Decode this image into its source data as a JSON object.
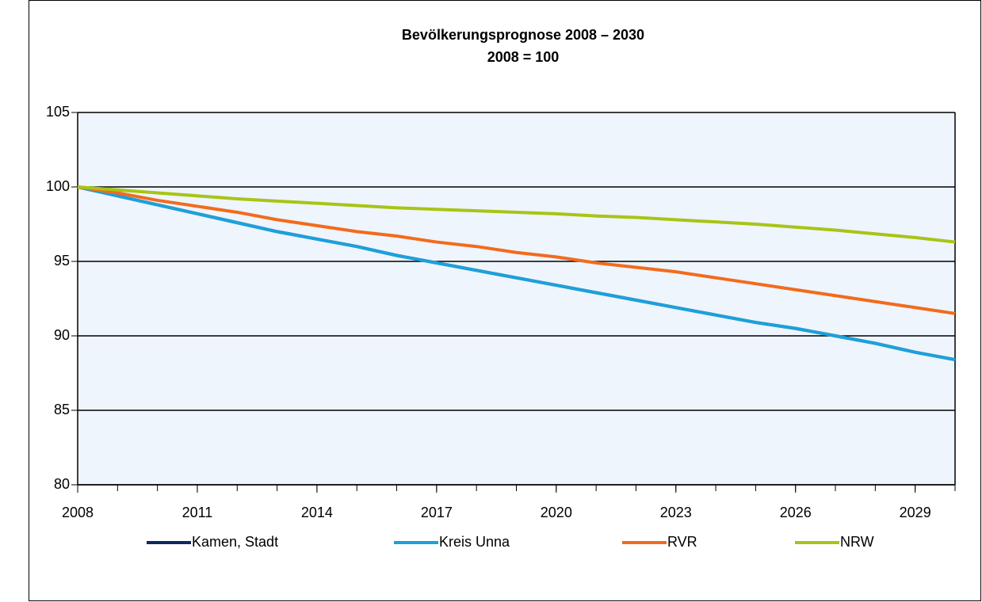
{
  "chart_data": {
    "type": "line",
    "title": "Bevölkerungsprognose 2008 – 2030",
    "subtitle": "2008 = 100",
    "x": [
      2008,
      2009,
      2010,
      2011,
      2012,
      2013,
      2014,
      2015,
      2016,
      2017,
      2018,
      2019,
      2020,
      2021,
      2022,
      2023,
      2024,
      2025,
      2026,
      2027,
      2028,
      2029,
      2030
    ],
    "series": [
      {
        "name": "Kamen, Stadt",
        "color": "#0d2a5e",
        "values": [
          100,
          99.4,
          98.8,
          98.2,
          97.6,
          97.0,
          96.5,
          96.0,
          95.4,
          94.9,
          94.4,
          93.9,
          93.4,
          92.9,
          92.4,
          91.9,
          91.4,
          90.9,
          90.5,
          90.0,
          89.5,
          88.9,
          88.4
        ]
      },
      {
        "name": "Kreis Unna",
        "color": "#1ba1dc",
        "values": [
          100,
          99.4,
          98.8,
          98.2,
          97.6,
          97.0,
          96.5,
          96.0,
          95.4,
          94.9,
          94.4,
          93.9,
          93.4,
          92.9,
          92.4,
          91.9,
          91.4,
          90.9,
          90.5,
          90.0,
          89.5,
          88.9,
          88.4
        ]
      },
      {
        "name": "RVR",
        "color": "#f26b1d",
        "values": [
          100,
          99.6,
          99.1,
          98.7,
          98.3,
          97.8,
          97.4,
          97.0,
          96.7,
          96.3,
          96.0,
          95.6,
          95.3,
          94.9,
          94.6,
          94.3,
          93.9,
          93.5,
          93.1,
          92.7,
          92.3,
          91.9,
          91.5
        ]
      },
      {
        "name": "NRW",
        "color": "#a8c416",
        "values": [
          100,
          99.8,
          99.6,
          99.4,
          99.2,
          99.05,
          98.9,
          98.75,
          98.6,
          98.5,
          98.4,
          98.3,
          98.2,
          98.05,
          97.95,
          97.8,
          97.65,
          97.5,
          97.3,
          97.1,
          96.85,
          96.6,
          96.3
        ]
      }
    ],
    "xlim": [
      2008,
      2030
    ],
    "xticks": [
      2008,
      2011,
      2014,
      2017,
      2020,
      2023,
      2026,
      2029
    ],
    "ylim": [
      80,
      105
    ],
    "yticks": [
      80,
      85,
      90,
      95,
      100,
      105
    ],
    "grid": true,
    "legend": "bottom"
  }
}
